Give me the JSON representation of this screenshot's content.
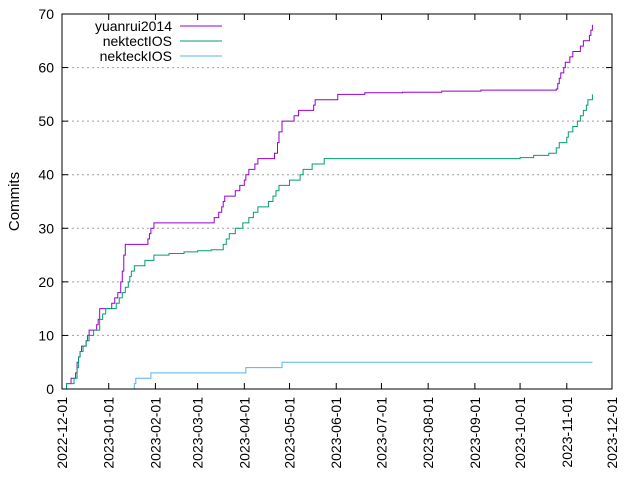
{
  "chart_data": {
    "type": "line",
    "title": "",
    "xlabel": "",
    "ylabel": "Commits",
    "xlim": [
      "2022-12-01",
      "2023-12-01"
    ],
    "ylim": [
      0,
      70
    ],
    "x_ticks": [
      "2022-12-01",
      "2023-01-01",
      "2023-02-01",
      "2023-03-01",
      "2023-04-01",
      "2023-05-01",
      "2023-06-01",
      "2023-07-01",
      "2023-08-01",
      "2023-09-01",
      "2023-10-01",
      "2023-11-01",
      "2023-12-01"
    ],
    "y_ticks": [
      "0",
      "10",
      "20",
      "30",
      "40",
      "50",
      "60",
      "70"
    ],
    "grid": "horizontal dotted",
    "legend_position": "top-left",
    "series": [
      {
        "name": "yuanrui2014",
        "color": "#9400d3",
        "points": [
          [
            "2022-12-03",
            0
          ],
          [
            "2022-12-04",
            1
          ],
          [
            "2022-12-07",
            2
          ],
          [
            "2022-12-10",
            3
          ],
          [
            "2022-12-11",
            5
          ],
          [
            "2022-12-12",
            6
          ],
          [
            "2022-12-13",
            7
          ],
          [
            "2022-12-14",
            8
          ],
          [
            "2022-12-17",
            9
          ],
          [
            "2022-12-18",
            10
          ],
          [
            "2022-12-19",
            11
          ],
          [
            "2022-12-24",
            12
          ],
          [
            "2022-12-25",
            13
          ],
          [
            "2022-12-26",
            15
          ],
          [
            "2023-01-03",
            16
          ],
          [
            "2023-01-05",
            17
          ],
          [
            "2023-01-07",
            18
          ],
          [
            "2023-01-09",
            20
          ],
          [
            "2023-01-10",
            22
          ],
          [
            "2023-01-11",
            25
          ],
          [
            "2023-01-12",
            27
          ],
          [
            "2023-01-27",
            28
          ],
          [
            "2023-01-28",
            29
          ],
          [
            "2023-01-29",
            30
          ],
          [
            "2023-01-31",
            31
          ],
          [
            "2023-03-12",
            32
          ],
          [
            "2023-03-15",
            33
          ],
          [
            "2023-03-17",
            34
          ],
          [
            "2023-03-18",
            35
          ],
          [
            "2023-03-19",
            36
          ],
          [
            "2023-03-26",
            37
          ],
          [
            "2023-03-29",
            38
          ],
          [
            "2023-04-01",
            39
          ],
          [
            "2023-04-02",
            40
          ],
          [
            "2023-04-04",
            41
          ],
          [
            "2023-04-08",
            42
          ],
          [
            "2023-04-10",
            43
          ],
          [
            "2023-04-21",
            44
          ],
          [
            "2023-04-23",
            46
          ],
          [
            "2023-04-24",
            48
          ],
          [
            "2023-04-26",
            50
          ],
          [
            "2023-05-04",
            51
          ],
          [
            "2023-05-07",
            52
          ],
          [
            "2023-05-17",
            53
          ],
          [
            "2023-05-18",
            54
          ],
          [
            "2023-06-02",
            55
          ],
          [
            "2023-06-20",
            55.3
          ],
          [
            "2023-07-15",
            55.4
          ],
          [
            "2023-08-10",
            55.6
          ],
          [
            "2023-09-05",
            55.8
          ],
          [
            "2023-10-25",
            56
          ],
          [
            "2023-10-26",
            57
          ],
          [
            "2023-10-27",
            58
          ],
          [
            "2023-10-28",
            59
          ],
          [
            "2023-10-30",
            60
          ],
          [
            "2023-10-31",
            61
          ],
          [
            "2023-11-03",
            62
          ],
          [
            "2023-11-05",
            63
          ],
          [
            "2023-11-10",
            64
          ],
          [
            "2023-11-12",
            65
          ],
          [
            "2023-11-16",
            66
          ],
          [
            "2023-11-17",
            67
          ],
          [
            "2023-11-18",
            68
          ]
        ]
      },
      {
        "name": "nektectIOS",
        "color": "#009e73",
        "points": [
          [
            "2022-12-03",
            0
          ],
          [
            "2022-12-04",
            1
          ],
          [
            "2022-12-09",
            2
          ],
          [
            "2022-12-11",
            4
          ],
          [
            "2022-12-12",
            6
          ],
          [
            "2022-12-13",
            7
          ],
          [
            "2022-12-15",
            8
          ],
          [
            "2022-12-17",
            9
          ],
          [
            "2022-12-19",
            10
          ],
          [
            "2022-12-22",
            11
          ],
          [
            "2022-12-26",
            13
          ],
          [
            "2022-12-28",
            14
          ],
          [
            "2022-12-30",
            15
          ],
          [
            "2023-01-06",
            16
          ],
          [
            "2023-01-08",
            17
          ],
          [
            "2023-01-10",
            18
          ],
          [
            "2023-01-12",
            19
          ],
          [
            "2023-01-14",
            20
          ],
          [
            "2023-01-15",
            21
          ],
          [
            "2023-01-16",
            22
          ],
          [
            "2023-01-18",
            23
          ],
          [
            "2023-01-25",
            24
          ],
          [
            "2023-01-31",
            25
          ],
          [
            "2023-02-10",
            25.3
          ],
          [
            "2023-02-20",
            25.6
          ],
          [
            "2023-03-01",
            25.8
          ],
          [
            "2023-03-10",
            26
          ],
          [
            "2023-03-18",
            27
          ],
          [
            "2023-03-20",
            28
          ],
          [
            "2023-03-22",
            29
          ],
          [
            "2023-03-26",
            30
          ],
          [
            "2023-03-31",
            31
          ],
          [
            "2023-04-04",
            32
          ],
          [
            "2023-04-07",
            33
          ],
          [
            "2023-04-10",
            34
          ],
          [
            "2023-04-17",
            35
          ],
          [
            "2023-04-20",
            36
          ],
          [
            "2023-04-22",
            37
          ],
          [
            "2023-04-24",
            38
          ],
          [
            "2023-05-01",
            39
          ],
          [
            "2023-05-08",
            40
          ],
          [
            "2023-05-10",
            41
          ],
          [
            "2023-05-16",
            42
          ],
          [
            "2023-05-24",
            43
          ],
          [
            "2023-06-15",
            43
          ],
          [
            "2023-07-15",
            43
          ],
          [
            "2023-08-15",
            43
          ],
          [
            "2023-09-15",
            43
          ],
          [
            "2023-10-01",
            43.2
          ],
          [
            "2023-10-10",
            43.6
          ],
          [
            "2023-10-20",
            44
          ],
          [
            "2023-10-25",
            45
          ],
          [
            "2023-10-27",
            46
          ],
          [
            "2023-11-01",
            47
          ],
          [
            "2023-11-02",
            48
          ],
          [
            "2023-11-05",
            49
          ],
          [
            "2023-11-08",
            50
          ],
          [
            "2023-11-10",
            51
          ],
          [
            "2023-11-12",
            52
          ],
          [
            "2023-11-14",
            53
          ],
          [
            "2023-11-15",
            54
          ],
          [
            "2023-11-18",
            55
          ]
        ]
      },
      {
        "name": "nekteckIOS",
        "color": "#56b4e9",
        "points": [
          [
            "2023-01-17",
            0
          ],
          [
            "2023-01-18",
            1
          ],
          [
            "2023-01-19",
            2
          ],
          [
            "2023-01-27",
            2
          ],
          [
            "2023-01-29",
            3
          ],
          [
            "2023-04-01",
            3
          ],
          [
            "2023-04-02",
            4
          ],
          [
            "2023-04-25",
            4
          ],
          [
            "2023-04-26",
            5
          ],
          [
            "2023-11-18",
            5
          ]
        ]
      }
    ]
  }
}
